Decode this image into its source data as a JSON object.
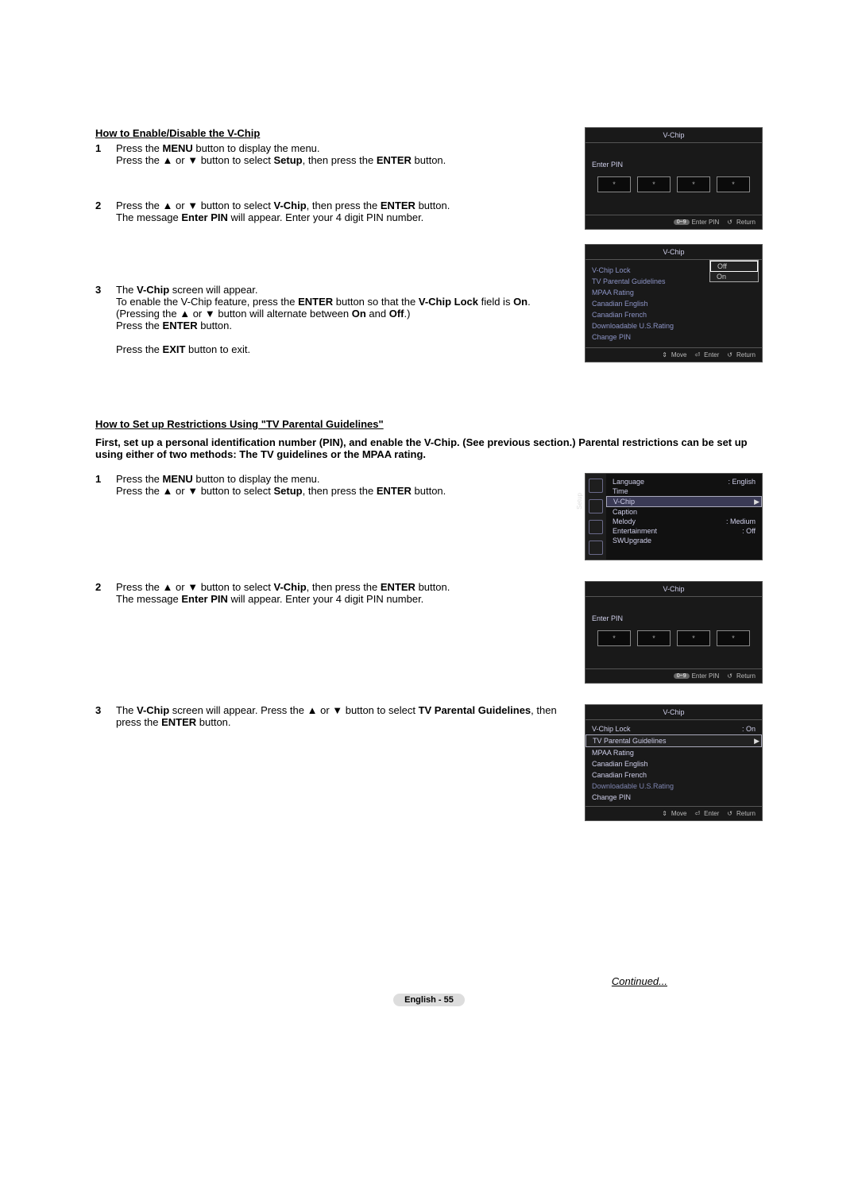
{
  "section1": {
    "title": "How to Enable/Disable the V-Chip",
    "steps": [
      "Press the <b>MENU</b> button to display the menu.<br>Press the <span class='up'></span> or <span class='dn'></span> button to select <b>Setup</b>, then press the <b>ENTER</b> button.",
      "Press the <span class='up'></span> or <span class='dn'></span> button to select <b>V-Chip</b>, then press the <b>ENTER</b> button.<br>The message <b>Enter PIN</b> will appear. Enter your 4 digit PIN number.",
      "The <b>V-Chip</b> screen will appear.<br>To enable the V-Chip feature, press the <b>ENTER</b> button so that the <b>V-Chip Lock</b> field is <b>On</b>. (Pressing the <span class='up'></span> or <span class='dn'></span> button will alternate between <b>On</b> and <b>Off</b>.)<br>Press the <b>ENTER</b> button.<br><br>Press the <b>EXIT</b> button to exit."
    ]
  },
  "section2": {
    "title": "How to Set up Restrictions Using \"TV Parental Guidelines\"",
    "intro": "First, set up a personal identification number (PIN), and enable the V-Chip. (See previous section.) Parental restrictions can be set up using either of two methods: The TV guidelines or the MPAA rating.",
    "steps": [
      "Press the <b>MENU</b> button to display the menu.<br>Press the <span class='up'></span> or <span class='dn'></span> button to select <b>Setup</b>, then press the <b>ENTER</b> button.",
      "Press the <span class='up'></span> or <span class='dn'></span> button to select <b>V-Chip</b>, then press the <b>ENTER</b> button.<br>The message <b>Enter PIN</b> will appear. Enter your 4 digit PIN number.",
      "The <b>V-Chip</b> screen will appear. Press the <span class='up'></span> or <span class='dn'></span> button to select <b>TV Parental Guidelines</b>, then press the <b>ENTER</b> button."
    ]
  },
  "continued": "Continued...",
  "footer": "English - 55",
  "pin_screen": {
    "title": "V-Chip",
    "label": "Enter PIN",
    "star": "*",
    "hint_btn": "0~9",
    "hint_enter": "Enter PIN",
    "hint_return": "Return"
  },
  "vchip_lock_screen": {
    "title": "V-Chip",
    "rows": [
      "V-Chip Lock",
      "TV Parental Guidelines",
      "MPAA Rating",
      "Canadian English",
      "Canadian French",
      "Downloadable U.S.Rating",
      "Change PIN"
    ],
    "popup": [
      "Off",
      "On"
    ],
    "hint_move": "Move",
    "hint_enter": "Enter",
    "hint_return": "Return"
  },
  "setup_screen": {
    "tab": "Setup",
    "rows": [
      {
        "label": "Language",
        "val": ": English"
      },
      {
        "label": "Time",
        "val": ""
      },
      {
        "label": "V-Chip",
        "val": "",
        "hl": true
      },
      {
        "label": "Caption",
        "val": ""
      },
      {
        "label": "Melody",
        "val": ": Medium"
      },
      {
        "label": "Entertainment",
        "val": ": Off"
      },
      {
        "label": "SWUpgrade",
        "val": ""
      }
    ]
  },
  "vchip2_screen": {
    "title": "V-Chip",
    "rows": [
      {
        "label": "V-Chip Lock",
        "val": ": On"
      },
      {
        "label": "TV Parental Guidelines",
        "val": "",
        "sel": true
      },
      {
        "label": "MPAA Rating",
        "val": ""
      },
      {
        "label": "Canadian English",
        "val": ""
      },
      {
        "label": "Canadian French",
        "val": ""
      },
      {
        "label": "Downloadable U.S.Rating",
        "val": "",
        "dim": true
      },
      {
        "label": "Change PIN",
        "val": ""
      }
    ],
    "hint_move": "Move",
    "hint_enter": "Enter",
    "hint_return": "Return"
  }
}
